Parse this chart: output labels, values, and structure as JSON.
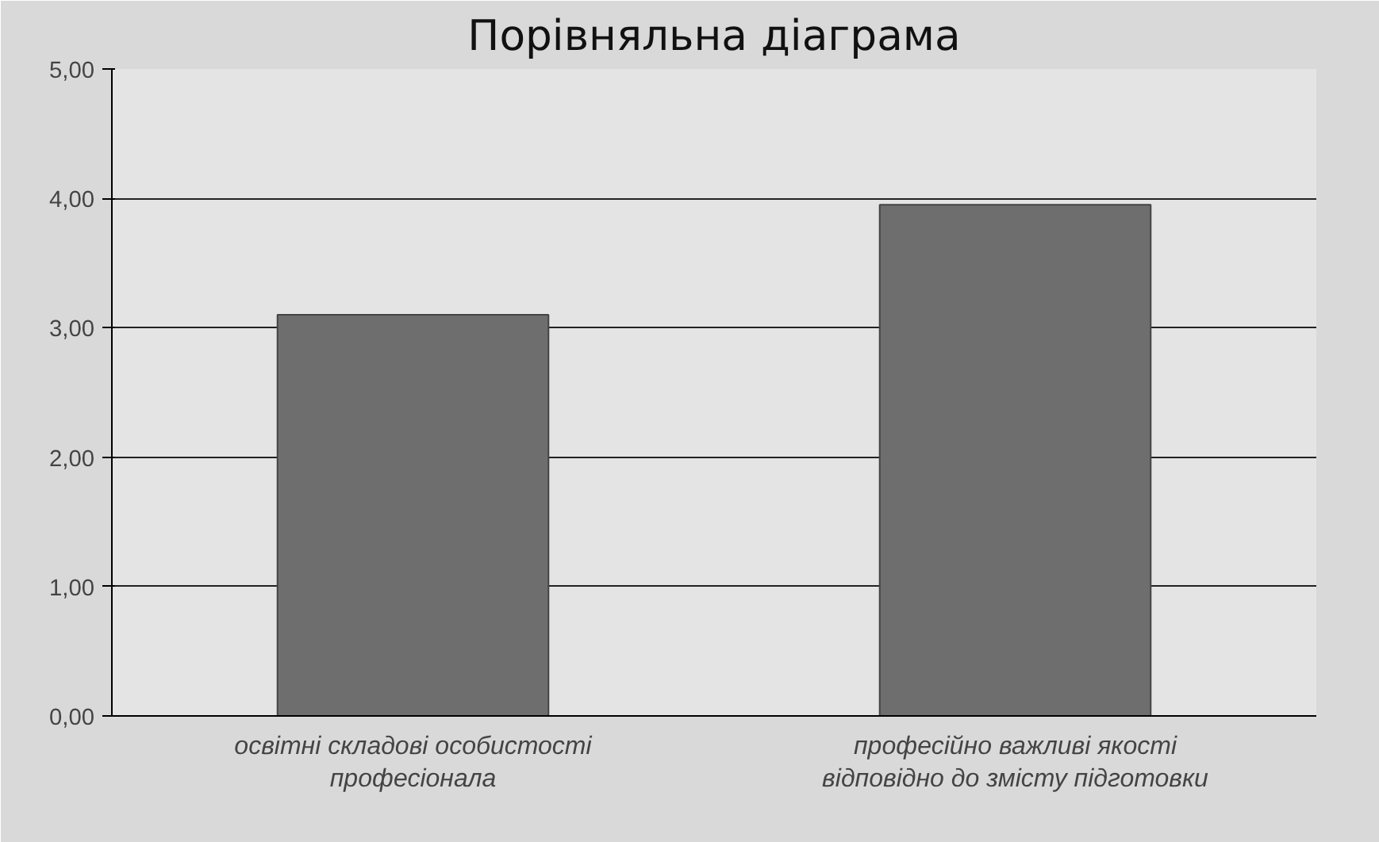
{
  "chart_data": {
    "type": "bar",
    "title": "Порівняльна діаграма",
    "categories": [
      "освітні складові особистості професіонала",
      "професійно важливі якості відповідно до змісту підготовки"
    ],
    "values": [
      3.1,
      3.95
    ],
    "color": "#6e6e6e",
    "ylim": [
      0,
      5
    ],
    "yticks": [
      {
        "value": 0,
        "label": "0,00"
      },
      {
        "value": 1,
        "label": "1,00"
      },
      {
        "value": 2,
        "label": "2,00"
      },
      {
        "value": 3,
        "label": "3,00"
      },
      {
        "value": 4,
        "label": "4,00"
      },
      {
        "value": 5,
        "label": "5,00"
      }
    ],
    "grid": "y"
  }
}
